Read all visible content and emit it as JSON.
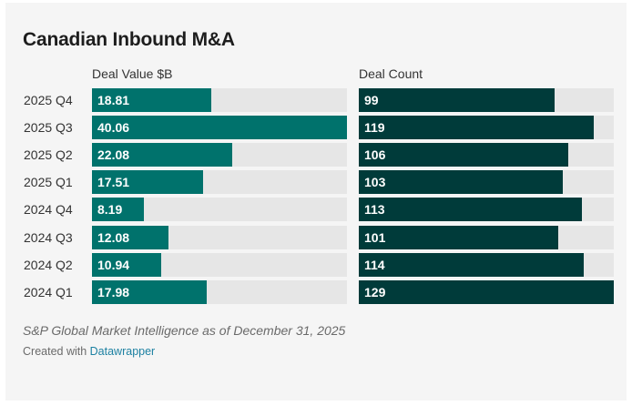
{
  "title": "Canadian Inbound M&A",
  "chart_data": {
    "type": "bar",
    "orientation": "horizontal",
    "title": "Canadian Inbound M&A",
    "categories": [
      "2025 Q4",
      "2025 Q3",
      "2025 Q2",
      "2025 Q1",
      "2024 Q4",
      "2024 Q3",
      "2024 Q2",
      "2024 Q1"
    ],
    "series": [
      {
        "name": "Deal Value $B",
        "values": [
          18.81,
          40.06,
          22.08,
          17.51,
          8.19,
          12.08,
          10.94,
          17.98
        ],
        "labels": [
          "18.81",
          "40.06",
          "22.08",
          "17.51",
          "8.19",
          "12.08",
          "10.94",
          "17.98"
        ],
        "color": "#00726c",
        "xlim": [
          0,
          40.06
        ]
      },
      {
        "name": "Deal Count",
        "values": [
          99,
          119,
          106,
          103,
          113,
          101,
          114,
          129
        ],
        "labels": [
          "99",
          "119",
          "106",
          "103",
          "113",
          "101",
          "114",
          "129"
        ],
        "color": "#003b3a",
        "xlim": [
          0,
          129
        ]
      }
    ],
    "track_color": "#e6e6e6",
    "legend": "none"
  },
  "footer": {
    "source": "S&P Global Market Intelligence as of December 31, 2025",
    "credit_prefix": "Created with ",
    "credit_link": "Datawrapper"
  }
}
